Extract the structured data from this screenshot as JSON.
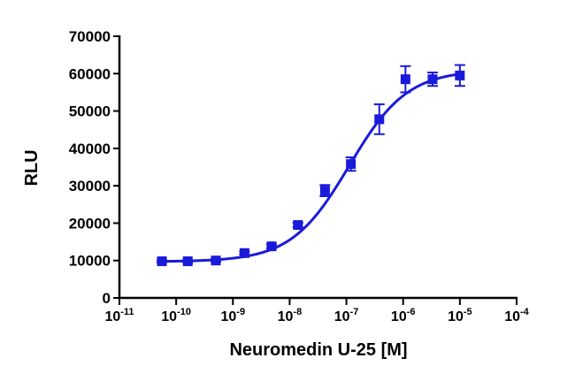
{
  "chart_data": {
    "type": "scatter",
    "xlabel": "Neuromedin U-25 [M]",
    "ylabel": "RLU",
    "x_scale": "log",
    "xlim": [
      1e-11,
      0.0001
    ],
    "ylim": [
      0,
      70000
    ],
    "x_tick_labels": [
      {
        "base": "10",
        "exp": "-11"
      },
      {
        "base": "10",
        "exp": "-10"
      },
      {
        "base": "10",
        "exp": "-9"
      },
      {
        "base": "10",
        "exp": "-8"
      },
      {
        "base": "10",
        "exp": "-7"
      },
      {
        "base": "10",
        "exp": "-6"
      },
      {
        "base": "10",
        "exp": "-5"
      },
      {
        "base": "10",
        "exp": "-4"
      }
    ],
    "y_ticks": [
      0,
      10000,
      20000,
      30000,
      40000,
      50000,
      60000,
      70000
    ],
    "grid": false,
    "legend": "none",
    "color": "#1a1adb",
    "marker": "square",
    "series": [
      {
        "points": [
          {
            "x": 5.6e-11,
            "y": 9800,
            "err": 300
          },
          {
            "x": 1.6e-10,
            "y": 9800,
            "err": 300
          },
          {
            "x": 5e-10,
            "y": 10000,
            "err": 300
          },
          {
            "x": 1.6e-09,
            "y": 12000,
            "err": 400
          },
          {
            "x": 4.8e-09,
            "y": 13800,
            "err": 500
          },
          {
            "x": 1.4e-08,
            "y": 19500,
            "err": 600
          },
          {
            "x": 4.2e-08,
            "y": 28700,
            "err": 1500
          },
          {
            "x": 1.2e-07,
            "y": 35800,
            "err": 1800
          },
          {
            "x": 3.8e-07,
            "y": 47800,
            "err": 4000
          },
          {
            "x": 1.1e-06,
            "y": 58500,
            "err": 3500
          },
          {
            "x": 3.3e-06,
            "y": 58500,
            "err": 1800
          },
          {
            "x": 1e-05,
            "y": 59500,
            "err": 2800
          }
        ]
      }
    ],
    "fit_curve": {
      "model": "four-parameter logistic",
      "bottom": 9700,
      "top": 61000,
      "log_ec50": -6.95,
      "hill_slope": 0.85,
      "x_range": [
        5.6e-11,
        1e-05
      ]
    }
  }
}
